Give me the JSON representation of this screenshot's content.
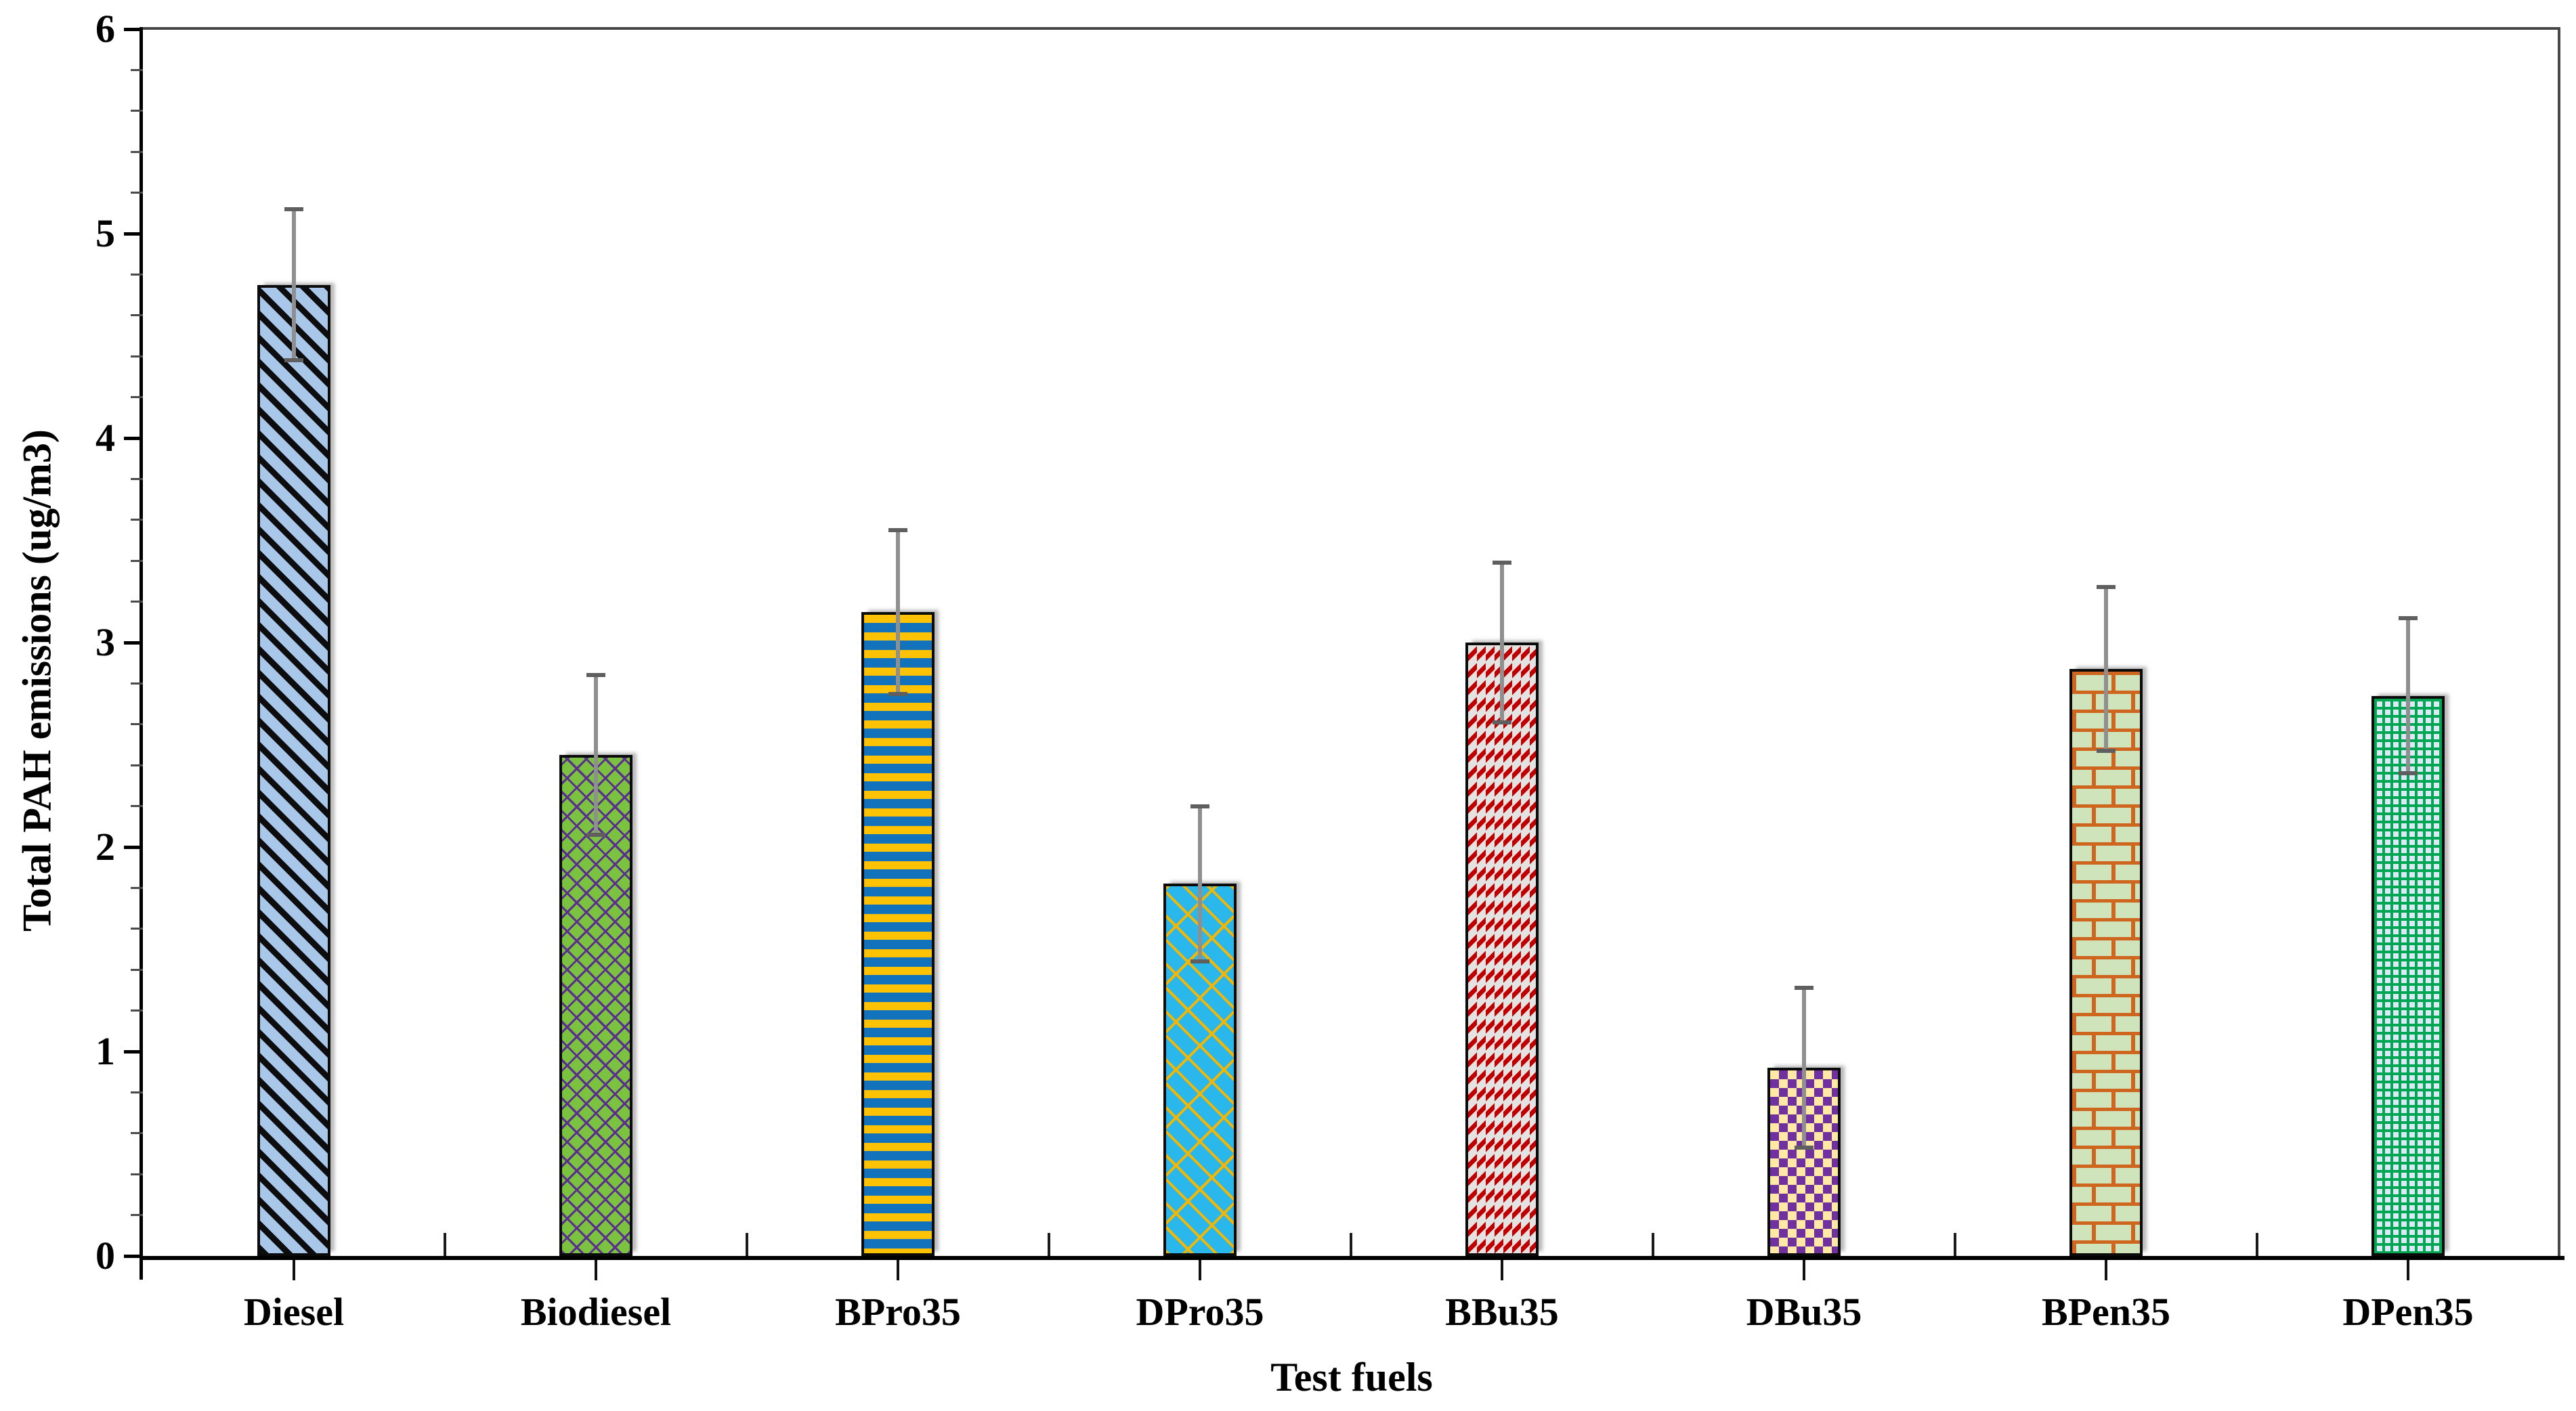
{
  "chart_data": {
    "type": "bar",
    "title": "",
    "xlabel": "Test fuels",
    "ylabel": "Total PAH emissions (ug/m3)",
    "ylim": [
      0,
      6
    ],
    "y_tick_labels": [
      "0",
      "1",
      "2",
      "3",
      "4",
      "5",
      "6"
    ],
    "y_minor_tick_step": 0.2,
    "grid": false,
    "legend_position": "none",
    "categories": [
      "Diesel",
      "Biodiesel",
      "BPro35",
      "DPro35",
      "BBu35",
      "DBu35",
      "BPen35",
      "DPen35"
    ],
    "values": [
      4.75,
      2.45,
      3.15,
      1.82,
      3.0,
      0.92,
      2.87,
      2.74
    ],
    "errors": [
      0.37,
      0.39,
      0.4,
      0.38,
      0.39,
      0.39,
      0.4,
      0.38
    ],
    "error_bar_colors": {
      "whisker": "#8F8F8F",
      "cap": "#5F5F5F"
    },
    "bar_styles": [
      {
        "pattern": "diagonal-stripes",
        "bg": "#A9C8E9",
        "fg": "#0D0D10"
      },
      {
        "pattern": "diamond-crosshatch",
        "bg": "#7CC241",
        "fg": "#5B2D8E"
      },
      {
        "pattern": "horizontal-stripes",
        "bg": "#1272BC",
        "fg": "#FCC203"
      },
      {
        "pattern": "diagonal-brick",
        "bg": "#29B7EC",
        "fg": "#F2B705"
      },
      {
        "pattern": "diagonal-dashes",
        "bg": "#E4E3E1",
        "fg": "#C00000"
      },
      {
        "pattern": "checkerboard",
        "bg": "#FFE9A4",
        "fg": "#7030A0"
      },
      {
        "pattern": "brick",
        "bg": "#CFE4BB",
        "fg": "#CE6620"
      },
      {
        "pattern": "square-grid",
        "bg": "#DCE9F6",
        "fg": "#00A651"
      }
    ],
    "axis_color": "#000000",
    "plot_border_color": "#474747"
  }
}
